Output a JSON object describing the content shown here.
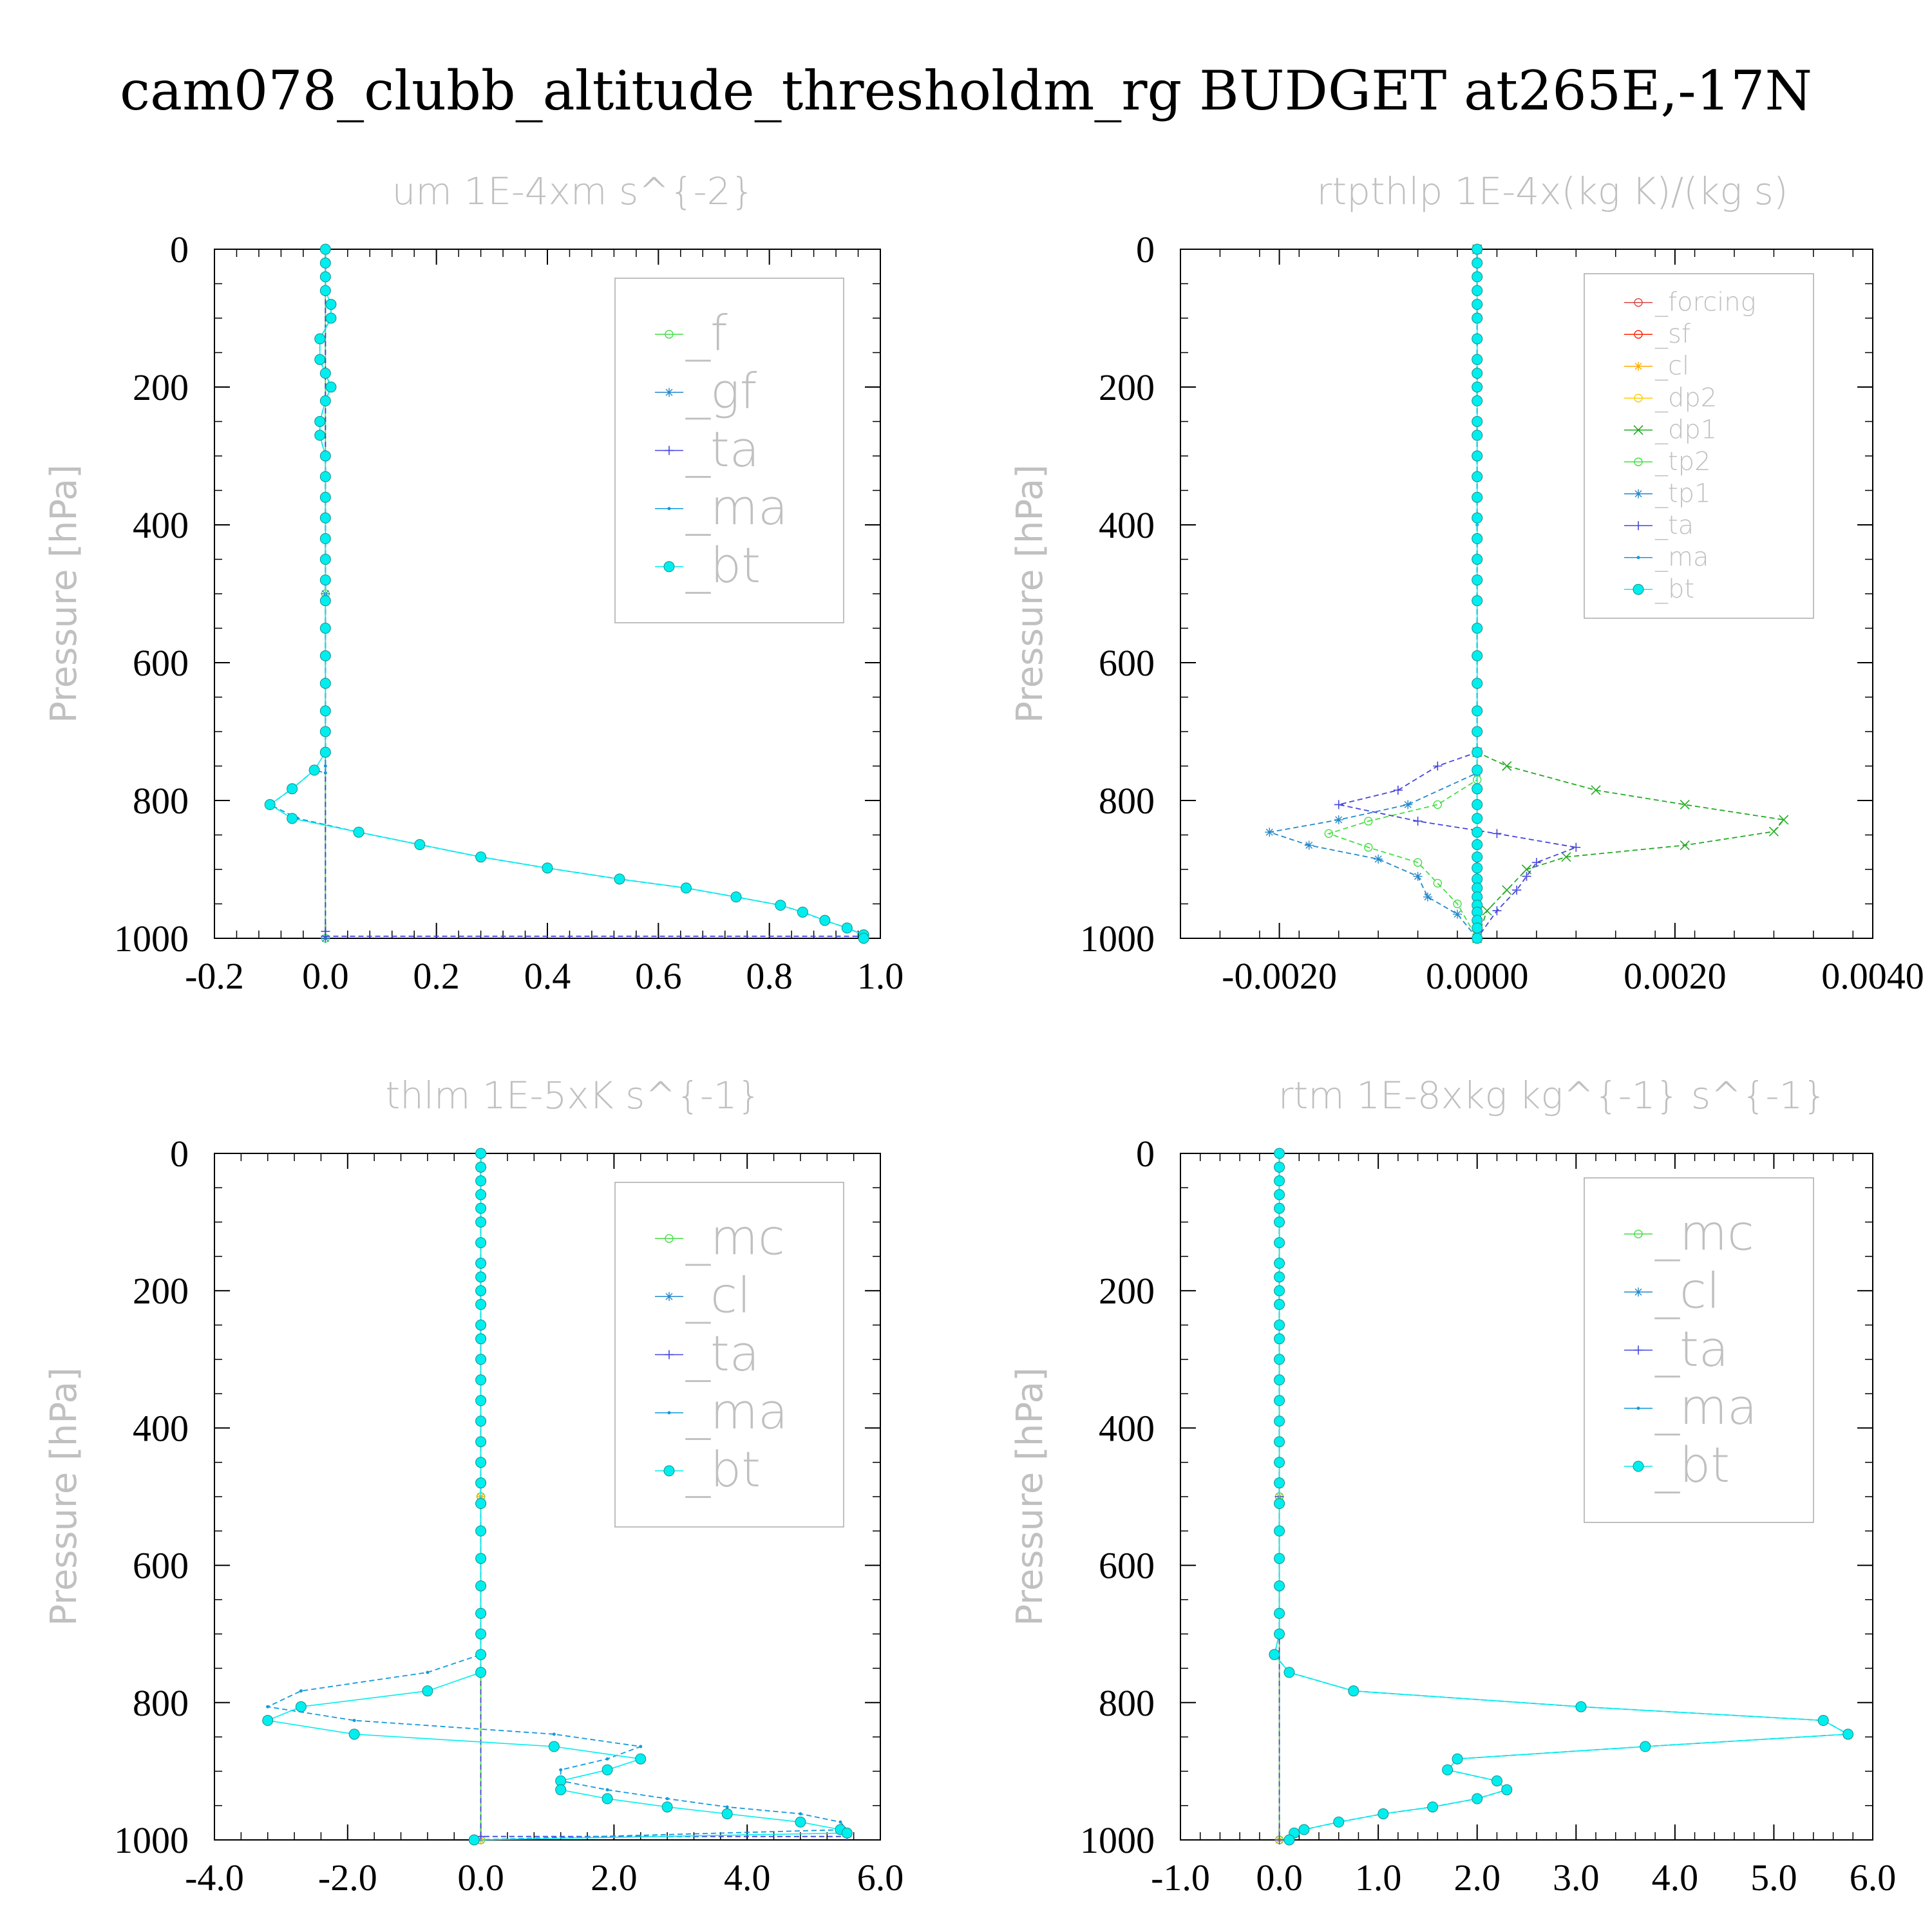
{
  "page": {
    "title": "cam078_clubb_altitude_thresholdm_rg  BUDGET at265E,-17N"
  },
  "colors": {
    "_f": "#44dd44",
    "_gf": "#2288cc",
    "_ta": "#4444dd",
    "_ma": "#1199dd",
    "_bt": "#00eeee",
    "_forcing": "#dd4444",
    "_sf": "#ff2200",
    "_cl": "#ffaa00",
    "_dp2": "#ffcc00",
    "_dp1": "#22aa22",
    "_tp2": "#44dd44",
    "_tp1": "#2288cc",
    "_mc": "#44dd44",
    "_cl4": "#2288cc",
    "axis": "#000000",
    "muted": "#c0c0c0"
  },
  "chart_data": [
    {
      "type": "line",
      "title": "um  1E-4xm s^{-2}",
      "ylabel": "Pressure [hPa]",
      "xlim": [
        -0.2,
        1.0
      ],
      "ylim": [
        1000,
        0
      ],
      "xticks": [
        "-0.2",
        "0.0",
        "0.2",
        "0.4",
        "0.6",
        "0.8",
        "1.0"
      ],
      "yticks": [
        "0",
        "200",
        "400",
        "600",
        "800",
        "1000"
      ],
      "legend": [
        "_f",
        "_gf",
        "_ta",
        "_ma",
        "_bt"
      ],
      "series": [
        {
          "name": "_ma",
          "x": [
            0.0,
            0.0,
            0.0,
            0.0,
            0.01,
            0.01,
            -0.01,
            -0.01,
            0.0,
            0.01,
            0.0,
            -0.01,
            -0.01,
            0.0,
            0.0,
            0.0,
            0.0,
            0.0,
            0.0,
            0.0,
            0.0,
            0.0,
            0.0,
            0.0,
            0.0,
            0.0,
            0.0,
            0.0,
            0.0,
            -0.02,
            -0.06,
            -0.1,
            -0.05,
            0.06,
            0.17,
            0.28,
            0.4,
            0.53,
            0.65,
            0.74,
            0.82,
            0.86,
            0.9,
            0.94,
            0.97,
            0.97
          ],
          "y": [
            0,
            20,
            40,
            60,
            80,
            100,
            130,
            160,
            180,
            200,
            220,
            250,
            270,
            300,
            330,
            360,
            390,
            420,
            450,
            480,
            510,
            550,
            590,
            630,
            670,
            700,
            730,
            750,
            760,
            756,
            783,
            806,
            826,
            846,
            864,
            882,
            898,
            914,
            927,
            940,
            952,
            962,
            974,
            985,
            995,
            1000
          ]
        },
        {
          "name": "_bt",
          "x": [
            0.0,
            0.0,
            0.0,
            0.0,
            0.01,
            0.01,
            -0.01,
            -0.01,
            0.0,
            0.01,
            0.0,
            -0.01,
            -0.01,
            0.0,
            0.0,
            0.0,
            0.0,
            0.0,
            0.0,
            0.0,
            0.0,
            0.0,
            0.0,
            0.0,
            0.0,
            0.0,
            0.0,
            -0.02,
            -0.06,
            -0.1,
            -0.06,
            0.06,
            0.17,
            0.28,
            0.4,
            0.53,
            0.65,
            0.74,
            0.82,
            0.86,
            0.9,
            0.94,
            0.97,
            0.97
          ],
          "y": [
            0,
            20,
            40,
            60,
            80,
            100,
            130,
            160,
            180,
            200,
            220,
            250,
            270,
            300,
            330,
            360,
            390,
            420,
            450,
            480,
            510,
            550,
            590,
            630,
            670,
            700,
            730,
            756,
            783,
            806,
            826,
            846,
            864,
            882,
            898,
            914,
            927,
            940,
            952,
            962,
            974,
            985,
            995,
            1000
          ]
        },
        {
          "name": "_ta",
          "x": [
            0.0,
            0.0,
            0.0,
            0.97
          ],
          "y": [
            0,
            990,
            997,
            997
          ]
        },
        {
          "name": "_f",
          "x": [
            0.0,
            0.0,
            0.0
          ],
          "y": [
            0,
            500,
            1000
          ]
        },
        {
          "name": "_gf",
          "x": [
            0.0,
            0.0,
            0.0
          ],
          "y": [
            0,
            500,
            1000
          ]
        }
      ]
    },
    {
      "type": "line",
      "title": "rtpthlp  1E-4x(kg K)/(kg s)",
      "ylabel": "Pressure [hPa]",
      "xlim": [
        -0.003,
        0.004
      ],
      "ylim": [
        1000,
        0
      ],
      "xticks": [
        "-0.0020",
        "0.0000",
        "0.0020",
        "0.0040"
      ],
      "yticks": [
        "0",
        "200",
        "400",
        "600",
        "800",
        "1000"
      ],
      "legend": [
        "_forcing",
        "_sf",
        "_cl",
        "_dp2",
        "_dp1",
        "_tp2",
        "_tp1",
        "_ta",
        "_ma",
        "_bt"
      ],
      "series": [
        {
          "name": "_dp1",
          "x": [
            0.0,
            0.0,
            0.0003,
            0.0012,
            0.0021,
            0.0031,
            0.003,
            0.0021,
            0.0009,
            0.0005,
            0.0003,
            0.0001,
            0.0
          ],
          "y": [
            0,
            730,
            750,
            785,
            806,
            828,
            845,
            865,
            882,
            900,
            930,
            960,
            1000
          ]
        },
        {
          "name": "_ta",
          "x": [
            0.0,
            0.0,
            -0.0004,
            -0.0008,
            -0.0014,
            -0.0006,
            0.0002,
            0.001,
            0.0006,
            0.0005,
            0.0004,
            0.0002,
            0.0
          ],
          "y": [
            0,
            730,
            750,
            785,
            806,
            830,
            848,
            868,
            890,
            910,
            930,
            960,
            1000
          ]
        },
        {
          "name": "_tp1",
          "x": [
            0.0,
            0.0,
            -0.0007,
            -0.0014,
            -0.0021,
            -0.0017,
            -0.001,
            -0.0006,
            -0.0005,
            -0.0002,
            0.0
          ],
          "y": [
            0,
            760,
            806,
            828,
            846,
            865,
            885,
            910,
            940,
            965,
            1000
          ]
        },
        {
          "name": "_tp2",
          "x": [
            0.0,
            0.0,
            -0.0004,
            -0.0011,
            -0.0015,
            -0.0011,
            -0.0006,
            -0.0004,
            -0.0002,
            0.0
          ],
          "y": [
            0,
            770,
            806,
            830,
            848,
            868,
            890,
            920,
            950,
            1000
          ]
        },
        {
          "name": "_ma",
          "x": [
            0.0,
            0.0,
            0.0,
            0.0
          ],
          "y": [
            0,
            400,
            800,
            1000
          ]
        },
        {
          "name": "_bt",
          "x": [
            0.0,
            0.0,
            0.0,
            0.0,
            0.0,
            0.0,
            0.0,
            0.0,
            0.0,
            0.0,
            0.0,
            0.0,
            0.0,
            0.0,
            0.0,
            0.0,
            0.0,
            0.0,
            0.0,
            0.0,
            0.0,
            0.0,
            0.0,
            0.0,
            0.0,
            0.0,
            0.0,
            0.0,
            0.0,
            0.0,
            0.0,
            0.0,
            0.0,
            0.0,
            0.0,
            0.0,
            0.0,
            0.0,
            0.0,
            0.0,
            0.0,
            0.0,
            0.0
          ],
          "y": [
            0,
            20,
            40,
            60,
            80,
            100,
            130,
            160,
            180,
            200,
            220,
            250,
            270,
            300,
            330,
            360,
            390,
            420,
            450,
            480,
            510,
            550,
            590,
            630,
            670,
            700,
            730,
            756,
            783,
            806,
            826,
            846,
            864,
            882,
            898,
            914,
            927,
            940,
            952,
            962,
            974,
            985,
            1000
          ]
        }
      ]
    },
    {
      "type": "line",
      "title": "thlm  1E-5xK s^{-1}",
      "ylabel": "Pressure [hPa]",
      "xlim": [
        -4.0,
        6.0
      ],
      "ylim": [
        1000,
        0
      ],
      "xticks": [
        "-4.0",
        "-2.0",
        "0.0",
        "2.0",
        "4.0",
        "6.0"
      ],
      "yticks": [
        "0",
        "200",
        "400",
        "600",
        "800",
        "1000"
      ],
      "legend": [
        "_mc",
        "_cl",
        "_ta",
        "_ma",
        "_bt"
      ],
      "series": [
        {
          "name": "_ma",
          "x": [
            0.0,
            0.0,
            0.0,
            0.0,
            0.0,
            0.0,
            0.0,
            0.0,
            0.0,
            0.0,
            0.0,
            0.0,
            0.0,
            0.0,
            0.0,
            0.0,
            0.0,
            0.0,
            0.0,
            0.0,
            0.0,
            0.0,
            0.0,
            0.0,
            0.0,
            0.0,
            0.0,
            -0.8,
            -2.7,
            -3.2,
            -1.9,
            1.1,
            2.4,
            1.9,
            1.2,
            1.2,
            1.9,
            2.8,
            3.7,
            4.8,
            5.4,
            5.5,
            -0.1
          ],
          "y": [
            0,
            20,
            40,
            60,
            80,
            100,
            130,
            160,
            180,
            200,
            220,
            250,
            270,
            300,
            330,
            360,
            390,
            420,
            450,
            480,
            510,
            550,
            590,
            630,
            670,
            700,
            730,
            756,
            783,
            806,
            826,
            846,
            864,
            882,
            898,
            914,
            927,
            940,
            952,
            962,
            974,
            985,
            1000
          ]
        },
        {
          "name": "_bt",
          "x": [
            0.0,
            0.0,
            0.0,
            0.0,
            0.0,
            0.0,
            0.0,
            0.0,
            0.0,
            0.0,
            0.0,
            0.0,
            0.0,
            0.0,
            0.0,
            0.0,
            0.0,
            0.0,
            0.0,
            0.0,
            0.0,
            0.0,
            0.0,
            0.0,
            0.0,
            0.0,
            0.0,
            0.0,
            -0.8,
            -2.7,
            -3.2,
            -1.9,
            1.1,
            2.4,
            1.9,
            1.2,
            1.2,
            1.9,
            2.8,
            3.7,
            4.8,
            5.4,
            5.5,
            -0.1
          ],
          "y": [
            0,
            20,
            40,
            60,
            80,
            100,
            130,
            160,
            180,
            200,
            220,
            250,
            270,
            300,
            330,
            360,
            390,
            420,
            450,
            480,
            510,
            550,
            590,
            630,
            670,
            700,
            730,
            756,
            783,
            806,
            826,
            846,
            864,
            882,
            898,
            914,
            927,
            940,
            952,
            962,
            974,
            985,
            990,
            1000
          ]
        },
        {
          "name": "_ta",
          "x": [
            0.0,
            0.0,
            5.5
          ],
          "y": [
            0,
            995,
            995
          ]
        },
        {
          "name": "_mc",
          "x": [
            0.0,
            0.0,
            0.0
          ],
          "y": [
            0,
            500,
            1000
          ]
        },
        {
          "name": "_cl",
          "x": [
            0.0,
            0.0,
            0.0
          ],
          "y": [
            0,
            500,
            1000
          ]
        }
      ]
    },
    {
      "type": "line",
      "title": "rtm  1E-8xkg kg^{-1} s^{-1}",
      "ylabel": "Pressure [hPa]",
      "xlim": [
        -1.0,
        6.0
      ],
      "ylim": [
        1000,
        0
      ],
      "xticks": [
        "-1.0",
        "0.0",
        "1.0",
        "2.0",
        "3.0",
        "4.0",
        "5.0",
        "6.0"
      ],
      "yticks": [
        "0",
        "200",
        "400",
        "600",
        "800",
        "1000"
      ],
      "legend": [
        "_mc",
        "_cl",
        "_ta",
        "_ma",
        "_bt"
      ],
      "series": [
        {
          "name": "_ma",
          "x": [
            0.0,
            0.0,
            0.0,
            0.0,
            0.0,
            0.0,
            0.0,
            0.0,
            0.0,
            0.0,
            0.0,
            0.0,
            0.0,
            0.0,
            0.0,
            0.0,
            0.0,
            0.0,
            0.0,
            0.0,
            0.0,
            0.0,
            0.0,
            0.0,
            0.0,
            0.0,
            -0.05,
            0.1,
            0.75,
            3.05,
            5.5,
            5.75,
            3.7,
            1.8,
            1.7,
            2.2,
            2.3,
            2.0,
            1.55,
            1.05,
            0.6,
            0.25,
            0.15,
            0.1
          ],
          "y": [
            0,
            20,
            40,
            60,
            80,
            100,
            130,
            160,
            180,
            200,
            220,
            250,
            270,
            300,
            330,
            360,
            390,
            420,
            450,
            480,
            510,
            550,
            590,
            630,
            670,
            700,
            730,
            756,
            783,
            806,
            826,
            846,
            864,
            882,
            898,
            914,
            927,
            940,
            952,
            962,
            974,
            985,
            990,
            1000
          ]
        },
        {
          "name": "_bt",
          "x": [
            0.0,
            0.0,
            0.0,
            0.0,
            0.0,
            0.0,
            0.0,
            0.0,
            0.0,
            0.0,
            0.0,
            0.0,
            0.0,
            0.0,
            0.0,
            0.0,
            0.0,
            0.0,
            0.0,
            0.0,
            0.0,
            0.0,
            0.0,
            0.0,
            0.0,
            0.0,
            -0.05,
            0.1,
            0.75,
            3.05,
            5.5,
            5.75,
            3.7,
            1.8,
            1.7,
            2.2,
            2.3,
            2.0,
            1.55,
            1.05,
            0.6,
            0.25,
            0.15,
            0.1
          ],
          "y": [
            0,
            20,
            40,
            60,
            80,
            100,
            130,
            160,
            180,
            200,
            220,
            250,
            270,
            300,
            330,
            360,
            390,
            420,
            450,
            480,
            510,
            550,
            590,
            630,
            670,
            700,
            730,
            756,
            783,
            806,
            826,
            846,
            864,
            882,
            898,
            914,
            927,
            940,
            952,
            962,
            974,
            985,
            990,
            1000
          ]
        },
        {
          "name": "_mc",
          "x": [
            0.0,
            0.0,
            0.0
          ],
          "y": [
            0,
            500,
            1000
          ]
        },
        {
          "name": "_cl",
          "x": [
            0.0,
            0.0,
            0.0
          ],
          "y": [
            0,
            500,
            1000
          ]
        },
        {
          "name": "_ta",
          "x": [
            0.0,
            0.0,
            0.0
          ],
          "y": [
            0,
            500,
            1000
          ]
        }
      ]
    }
  ]
}
